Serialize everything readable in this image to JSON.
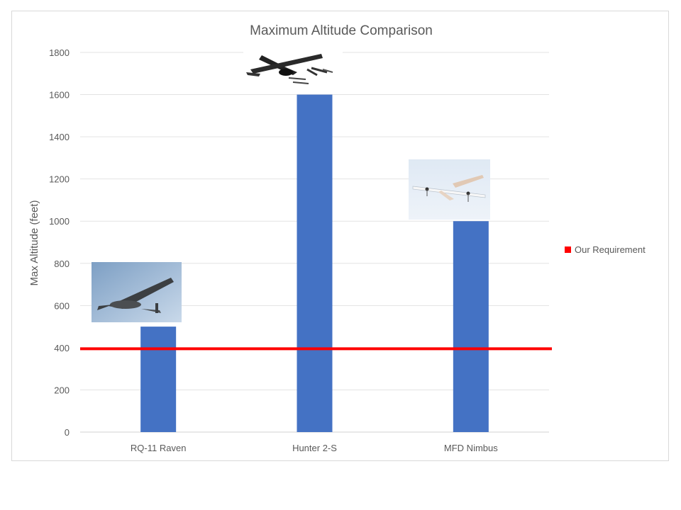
{
  "chart_data": {
    "type": "bar",
    "title": "Maximum Altitude Comparison",
    "xlabel": "",
    "ylabel": "Max Altitude (feet)",
    "categories": [
      "RQ-11 Raven",
      "Hunter 2-S",
      "MFD Nimbus"
    ],
    "values": [
      500,
      1600,
      1000
    ],
    "ylim": [
      0,
      1800
    ],
    "yticks": [
      "0",
      "200",
      "400",
      "600",
      "800",
      "1000",
      "1200",
      "1400",
      "1600",
      "1800"
    ],
    "grid": true,
    "bar_color": "#4472C4",
    "reference_line": {
      "name": "Our Requirement",
      "value": 395,
      "color": "#FF0000"
    },
    "legend_position": "right",
    "images": [
      "raven-photo",
      "hunter-photo",
      "nimbus-photo"
    ]
  }
}
